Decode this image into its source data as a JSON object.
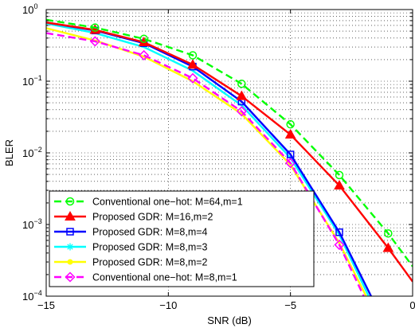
{
  "chart_data": {
    "type": "line",
    "title": "",
    "xlabel": "SNR (dB)",
    "ylabel": "BLER",
    "xlim": [
      -15,
      0
    ],
    "ylim": [
      0.0001,
      1
    ],
    "yscale": "log",
    "grid": true,
    "grid_style": "dotted",
    "legend_position": "bottom-left",
    "x_ticks": [
      -15,
      -10,
      -5,
      0
    ],
    "x_tick_labels": [
      "−15",
      "−10",
      "−5",
      "0"
    ],
    "y_ticks": [
      0.0001,
      0.001,
      0.01,
      0.1,
      1
    ],
    "y_tick_labels": [
      {
        "base": "10",
        "exp": "−4"
      },
      {
        "base": "10",
        "exp": "−3"
      },
      {
        "base": "10",
        "exp": "−2"
      },
      {
        "base": "10",
        "exp": "−1"
      },
      {
        "base": "10",
        "exp": "0"
      }
    ],
    "series": [
      {
        "name": "Conventional one−hot: M=64,m=1",
        "color": "#00ff00",
        "dash": "dashed",
        "marker": "circle",
        "x": [
          -15,
          -13,
          -11,
          -9,
          -7,
          -5,
          -3,
          -1,
          0
        ],
        "y": [
          0.72,
          0.56,
          0.39,
          0.23,
          0.092,
          0.025,
          0.0049,
          0.00075,
          0.00026
        ],
        "marker_x": [
          -13,
          -11,
          -9,
          -7,
          -5,
          -3,
          -1
        ]
      },
      {
        "name": "Proposed GDR: M=16,m=2",
        "color": "#ff0000",
        "dash": "solid",
        "marker": "triangle",
        "x": [
          -15,
          -13,
          -11,
          -9,
          -7,
          -5,
          -3,
          -1,
          0
        ],
        "y": [
          0.66,
          0.52,
          0.35,
          0.17,
          0.062,
          0.018,
          0.0035,
          0.00047,
          0.00016
        ],
        "marker_x": [
          -13,
          -11,
          -9,
          -7,
          -5,
          -3,
          -1
        ]
      },
      {
        "name": "Proposed GDR: M=8,m=4",
        "color": "#0000ff",
        "dash": "solid",
        "marker": "square",
        "x": [
          -15,
          -13,
          -11,
          -9,
          -7,
          -5,
          -3,
          -1.7
        ],
        "y": [
          0.66,
          0.51,
          0.34,
          0.16,
          0.052,
          0.0095,
          0.00078,
          0.0001
        ],
        "marker_x": [
          -13,
          -11,
          -9,
          -7,
          -5,
          -3
        ]
      },
      {
        "name": "Proposed GDR: M=8,m=3",
        "color": "#00ffff",
        "dash": "solid",
        "marker": "star",
        "x": [
          -15,
          -13,
          -11,
          -9,
          -7,
          -5,
          -3,
          -1.8
        ],
        "y": [
          0.64,
          0.47,
          0.3,
          0.14,
          0.046,
          0.0085,
          0.00072,
          0.0001
        ],
        "marker_x": []
      },
      {
        "name": "Proposed GDR: M=8,m=2",
        "color": "#ffff00",
        "dash": "solid",
        "marker": "dot",
        "x": [
          -15,
          -13,
          -11,
          -9,
          -7,
          -5,
          -3,
          -1.9
        ],
        "y": [
          0.55,
          0.37,
          0.22,
          0.1,
          0.035,
          0.0068,
          0.00055,
          0.0001
        ],
        "marker_x": []
      },
      {
        "name": "Conventional one−hot: M=8,m=1",
        "color": "#ff00ff",
        "dash": "dashed",
        "marker": "diamond",
        "x": [
          -15,
          -13,
          -11,
          -9,
          -7,
          -5,
          -3,
          -2.0
        ],
        "y": [
          0.47,
          0.36,
          0.23,
          0.11,
          0.038,
          0.0072,
          0.00052,
          0.0001
        ],
        "marker_x": [
          -13,
          -11,
          -9,
          -7,
          -5,
          -3
        ]
      }
    ]
  }
}
